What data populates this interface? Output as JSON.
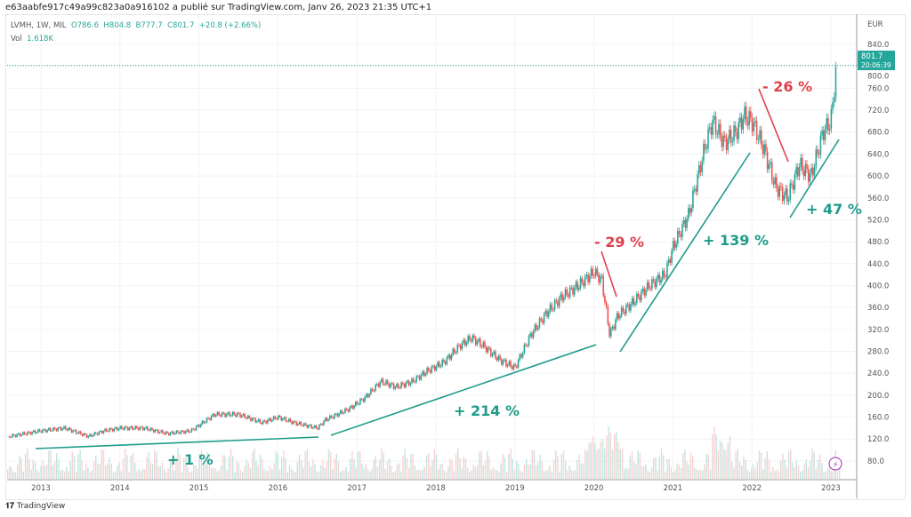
{
  "header": {
    "publish_line": "e63aabfe917c49a99c823a0a916102 a publié sur TradingView.com, Janv 26, 2023 21:35 UTC+1"
  },
  "legend": {
    "symbol": "LVMH, 1W, MIL",
    "open": "O786.6",
    "high": "H804.8",
    "low": "B777.7",
    "close": "C801.7",
    "change": "+20.8 (+2.66%)",
    "vol_label": "Vol",
    "vol_value": "1.618K"
  },
  "price_tag": {
    "price": "801.7",
    "countdown": "20:06:39"
  },
  "brand": "TradingView",
  "colors": {
    "up": "#26a69a",
    "down": "#ef5350",
    "annot_up": "#1e9b8a",
    "annot_down": "#e0404a"
  },
  "chart_data": {
    "type": "candlestick",
    "currency_label": "EUR",
    "y_ticks": [
      "840.0",
      "800.0",
      "760.0",
      "720.0",
      "680.0",
      "640.0",
      "600.0",
      "560.0",
      "520.0",
      "480.0",
      "440.0",
      "400.0",
      "360.0",
      "320.0",
      "280.0",
      "240.0",
      "200.0",
      "160.0",
      "120.0",
      "80.0"
    ],
    "x_ticks": [
      "2013",
      "2014",
      "2015",
      "2016",
      "2017",
      "2018",
      "2019",
      "2020",
      "2021",
      "2022",
      "2023"
    ],
    "ylim": [
      60,
      880
    ],
    "grid": true,
    "approx_closes": [
      [
        2012.6,
        125
      ],
      [
        2012.8,
        130
      ],
      [
        2013.0,
        135
      ],
      [
        2013.3,
        140
      ],
      [
        2013.6,
        125
      ],
      [
        2013.8,
        135
      ],
      [
        2014.0,
        140
      ],
      [
        2014.3,
        140
      ],
      [
        2014.6,
        130
      ],
      [
        2014.9,
        135
      ],
      [
        2015.2,
        165
      ],
      [
        2015.5,
        165
      ],
      [
        2015.8,
        150
      ],
      [
        2016.0,
        160
      ],
      [
        2016.2,
        150
      ],
      [
        2016.5,
        140
      ],
      [
        2016.6,
        155
      ],
      [
        2016.9,
        175
      ],
      [
        2017.1,
        195
      ],
      [
        2017.3,
        225
      ],
      [
        2017.5,
        215
      ],
      [
        2017.7,
        225
      ],
      [
        2017.9,
        245
      ],
      [
        2018.1,
        260
      ],
      [
        2018.3,
        290
      ],
      [
        2018.45,
        305
      ],
      [
        2018.6,
        290
      ],
      [
        2018.8,
        265
      ],
      [
        2019.0,
        250
      ],
      [
        2019.2,
        310
      ],
      [
        2019.4,
        350
      ],
      [
        2019.6,
        380
      ],
      [
        2019.8,
        400
      ],
      [
        2020.0,
        425
      ],
      [
        2020.1,
        410
      ],
      [
        2020.2,
        310
      ],
      [
        2020.3,
        345
      ],
      [
        2020.5,
        370
      ],
      [
        2020.7,
        400
      ],
      [
        2020.9,
        420
      ],
      [
        2021.0,
        470
      ],
      [
        2021.2,
        530
      ],
      [
        2021.4,
        650
      ],
      [
        2021.5,
        700
      ],
      [
        2021.65,
        660
      ],
      [
        2021.8,
        680
      ],
      [
        2021.9,
        710
      ],
      [
        2022.0,
        700
      ],
      [
        2022.15,
        650
      ],
      [
        2022.3,
        580
      ],
      [
        2022.45,
        560
      ],
      [
        2022.6,
        620
      ],
      [
        2022.75,
        600
      ],
      [
        2022.9,
        680
      ],
      [
        2023.0,
        700
      ],
      [
        2023.07,
        801.7
      ]
    ],
    "annotations": [
      {
        "text": "+ 1 %",
        "kind": "up"
      },
      {
        "text": "+ 214 %",
        "kind": "up"
      },
      {
        "text": "- 29 %",
        "kind": "down"
      },
      {
        "text": "+ 139 %",
        "kind": "up"
      },
      {
        "text": "- 26 %",
        "kind": "down"
      },
      {
        "text": "+ 47 %",
        "kind": "up"
      }
    ]
  }
}
